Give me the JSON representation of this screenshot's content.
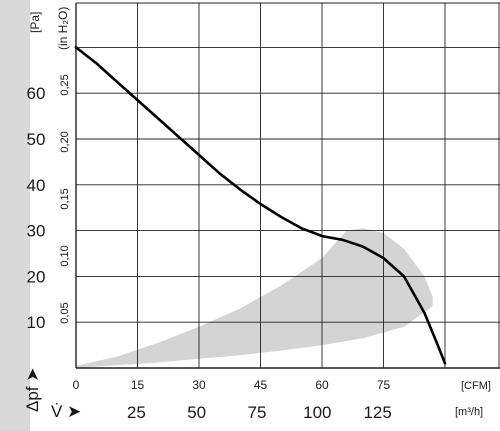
{
  "chart_data": {
    "type": "line",
    "x_unit_label": "[CFM]",
    "x2_unit_label": "[m³/h]",
    "x_symbol": "V̇ ➤",
    "y_unit_label": "[Pa]",
    "y2_unit_label": "(in H₂O)",
    "y_symbol": "Δpf ➤",
    "x_ticks_cfm": [
      "0",
      "15",
      "30",
      "45",
      "60",
      "75"
    ],
    "x_ticks_m3h": [
      "25",
      "50",
      "75",
      "100",
      "125"
    ],
    "y_ticks_pa": [
      "10",
      "20",
      "30",
      "40",
      "50",
      "60"
    ],
    "y_ticks_inh2o": [
      "0,05",
      "0,10",
      "0,15",
      "0,20",
      "0,25"
    ],
    "xlim_cfm": [
      0,
      90
    ],
    "ylim_pa": [
      0,
      70
    ],
    "grid": true,
    "series": [
      {
        "x": [
          0,
          5,
          10,
          15,
          20,
          25,
          30,
          35,
          40,
          45,
          50,
          55,
          58,
          60,
          65,
          70,
          75,
          80,
          85,
          88,
          90
        ],
        "y": [
          70,
          66.5,
          62.5,
          58.5,
          54.5,
          50.5,
          46.5,
          42.5,
          39,
          35.8,
          33,
          30.5,
          29.5,
          28.8,
          28,
          26.5,
          24,
          20,
          12,
          5.5,
          1
        ],
        "color": "#000000"
      }
    ],
    "shaded_region": {
      "upper": {
        "x": [
          0,
          10,
          20,
          30,
          40,
          50,
          60,
          66,
          70,
          75,
          80,
          85,
          87
        ],
        "y": [
          0.5,
          2.5,
          5.5,
          9,
          13,
          18,
          24,
          30,
          30.5,
          29.5,
          26,
          20,
          15.5
        ]
      },
      "lower": {
        "x": [
          87,
          80,
          70,
          60,
          50,
          40,
          30,
          20,
          10,
          0
        ],
        "y": [
          13.5,
          9,
          6.5,
          5,
          3.8,
          2.8,
          2,
          1.2,
          0.6,
          0
        ]
      },
      "color": "#d4d4d4"
    }
  }
}
